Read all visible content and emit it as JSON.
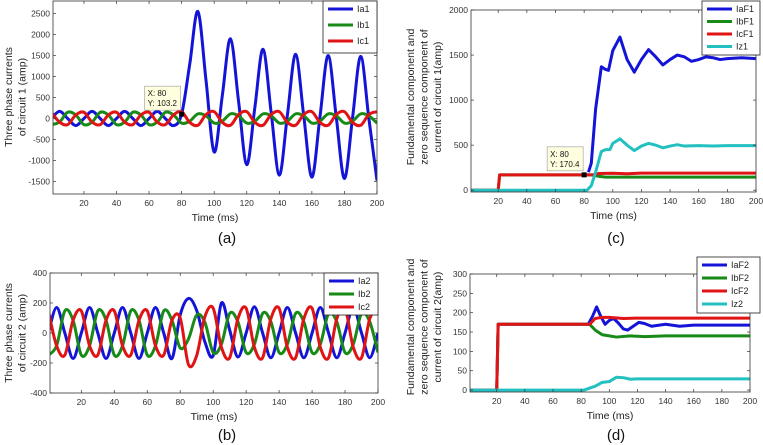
{
  "chart_data": [
    {
      "id": "a",
      "type": "line",
      "caption": "(a)",
      "xlabel": "Time (ms)",
      "ylabel": [
        "Three phase currents",
        "of circuit 1 (amp)"
      ],
      "xlim": [
        1,
        200
      ],
      "ylim": [
        -1800,
        2800
      ],
      "xticks": [
        20,
        40,
        60,
        80,
        100,
        120,
        140,
        160,
        180,
        200
      ],
      "yticks": [
        -1500,
        -1000,
        -500,
        0,
        500,
        1000,
        1500,
        2000,
        2500
      ],
      "grid": false,
      "legend": "top-right",
      "x": [
        0,
        5,
        10,
        15,
        20,
        25,
        30,
        35,
        40,
        45,
        50,
        55,
        60,
        65,
        70,
        75,
        80,
        85,
        90,
        95,
        100,
        105,
        110,
        115,
        120,
        125,
        130,
        135,
        140,
        145,
        150,
        155,
        160,
        165,
        170,
        175,
        180,
        185,
        190,
        195,
        200
      ],
      "series": [
        {
          "name": "Ia1",
          "color": "#1414d8",
          "y": [
            0,
            170,
            0,
            -170,
            0,
            170,
            0,
            -170,
            0,
            170,
            0,
            -170,
            0,
            170,
            0,
            -170,
            103,
            1300,
            2550,
            900,
            -800,
            550,
            1900,
            400,
            -1100,
            270,
            1650,
            140,
            -1350,
            90,
            1530,
            65,
            -1400,
            50,
            1500,
            25,
            -1430,
            25,
            1480,
            0,
            -1480
          ]
        },
        {
          "name": "Ib1",
          "color": "#178a17",
          "y": [
            -147,
            -85,
            147,
            85,
            -147,
            -85,
            147,
            85,
            -147,
            -85,
            147,
            85,
            -147,
            -85,
            147,
            85,
            -110,
            -64,
            110,
            64,
            -110,
            -64,
            110,
            64,
            -110,
            -64,
            110,
            64,
            -110,
            -64,
            110,
            64,
            -110,
            -64,
            110,
            64,
            -110,
            -64,
            110,
            64,
            -110
          ]
        },
        {
          "name": "Ic1",
          "color": "#e01414",
          "y": [
            147,
            -85,
            -147,
            85,
            147,
            -85,
            -147,
            85,
            147,
            -85,
            -147,
            85,
            147,
            -85,
            -147,
            85,
            162,
            -94,
            -162,
            94,
            162,
            -94,
            -162,
            94,
            162,
            -94,
            -162,
            94,
            162,
            -94,
            -162,
            94,
            162,
            -94,
            -162,
            94,
            162,
            -94,
            -162,
            94,
            162
          ]
        }
      ],
      "datatip": {
        "x_label": "X: 80",
        "y_label": "Y: 103.2",
        "x": 80,
        "y": 103.2
      }
    },
    {
      "id": "b",
      "type": "line",
      "caption": "(b)",
      "xlabel": "Time (ms)",
      "ylabel": [
        "Three phase currents",
        "of circuit 2 (amp)"
      ],
      "xlim": [
        1,
        200
      ],
      "ylim": [
        -400,
        400
      ],
      "xticks": [
        20,
        40,
        60,
        80,
        100,
        120,
        140,
        160,
        180,
        200
      ],
      "yticks": [
        -400,
        -200,
        0,
        200,
        400
      ],
      "grid": false,
      "legend": "top-right",
      "x": [
        0,
        5,
        10,
        15,
        20,
        25,
        30,
        35,
        40,
        45,
        50,
        55,
        60,
        65,
        70,
        75,
        80,
        85,
        90,
        95,
        100,
        105,
        110,
        115,
        120,
        125,
        130,
        135,
        140,
        145,
        150,
        155,
        160,
        165,
        170,
        175,
        180,
        185,
        190,
        195,
        200
      ],
      "series": [
        {
          "name": "Ia2",
          "color": "#1414d8",
          "y": [
            0,
            170,
            0,
            -170,
            0,
            170,
            0,
            -170,
            0,
            170,
            0,
            -170,
            0,
            170,
            0,
            -170,
            120,
            230,
            150,
            -60,
            -150,
            200,
            20,
            -160,
            0,
            175,
            0,
            -165,
            0,
            170,
            0,
            -165,
            0,
            170,
            0,
            -165,
            0,
            170,
            0,
            -165,
            0
          ]
        },
        {
          "name": "Ib2",
          "color": "#178a17",
          "y": [
            -147,
            -85,
            147,
            85,
            -147,
            -85,
            147,
            85,
            -147,
            -85,
            147,
            85,
            -147,
            -85,
            147,
            85,
            -100,
            -40,
            120,
            70,
            -130,
            -75,
            130,
            75,
            -130,
            -75,
            130,
            75,
            -130,
            -75,
            130,
            75,
            -130,
            -75,
            130,
            75,
            -130,
            -75,
            130,
            75,
            -130
          ]
        },
        {
          "name": "Ic2",
          "color": "#e01414",
          "y": [
            147,
            -85,
            -147,
            85,
            147,
            -85,
            -147,
            85,
            147,
            -85,
            -147,
            85,
            147,
            -85,
            -147,
            85,
            100,
            -210,
            -150,
            110,
            165,
            -95,
            -165,
            95,
            165,
            -95,
            -165,
            95,
            165,
            -95,
            -165,
            95,
            165,
            -95,
            -165,
            95,
            165,
            -95,
            -165,
            95,
            165
          ]
        }
      ]
    },
    {
      "id": "c",
      "type": "line",
      "caption": "(c)",
      "xlabel": "Time (ms)",
      "ylabel": [
        "Fundamental component and",
        "zero sequence component of",
        "current of circuit 1(amp)"
      ],
      "xlim": [
        1,
        200
      ],
      "ylim": [
        -20,
        2000
      ],
      "xticks": [
        20,
        40,
        60,
        80,
        100,
        120,
        140,
        160,
        180,
        200
      ],
      "yticks": [
        0,
        500,
        1000,
        1500,
        2000
      ],
      "grid": false,
      "legend": "top-right",
      "series": [
        {
          "name": "IaF1",
          "color": "#1414d8",
          "points": [
            [
              83,
              200
            ],
            [
              85,
              300
            ],
            [
              88,
              900
            ],
            [
              92,
              1370
            ],
            [
              95,
              1340
            ],
            [
              97,
              1330
            ],
            [
              100,
              1550
            ],
            [
              105,
              1700
            ],
            [
              110,
              1450
            ],
            [
              115,
              1310
            ],
            [
              120,
              1450
            ],
            [
              125,
              1560
            ],
            [
              130,
              1480
            ],
            [
              135,
              1390
            ],
            [
              140,
              1450
            ],
            [
              145,
              1500
            ],
            [
              150,
              1480
            ],
            [
              155,
              1430
            ],
            [
              160,
              1450
            ],
            [
              165,
              1480
            ],
            [
              170,
              1470
            ],
            [
              175,
              1450
            ],
            [
              180,
              1460
            ],
            [
              190,
              1470
            ],
            [
              200,
              1460
            ]
          ]
        },
        {
          "name": "IbF1",
          "color": "#178a17",
          "points": [
            [
              1,
              0
            ],
            [
              20,
              0
            ],
            [
              21,
              170
            ],
            [
              86,
              170
            ],
            [
              90,
              155
            ],
            [
              95,
              145
            ],
            [
              120,
              145
            ],
            [
              200,
              145
            ]
          ]
        },
        {
          "name": "IcF1",
          "color": "#e01414",
          "points": [
            [
              1,
              0
            ],
            [
              20,
              0
            ],
            [
              21,
              170
            ],
            [
              86,
              170
            ],
            [
              90,
              185
            ],
            [
              100,
              188
            ],
            [
              110,
              182
            ],
            [
              120,
              190
            ],
            [
              200,
              190
            ]
          ]
        },
        {
          "name": "Iz1",
          "color": "#22c0c0",
          "points": [
            [
              1,
              0
            ],
            [
              82,
              0
            ],
            [
              85,
              50
            ],
            [
              88,
              200
            ],
            [
              92,
              430
            ],
            [
              95,
              450
            ],
            [
              98,
              450
            ],
            [
              100,
              520
            ],
            [
              105,
              570
            ],
            [
              110,
              500
            ],
            [
              115,
              440
            ],
            [
              120,
              490
            ],
            [
              125,
              520
            ],
            [
              130,
              500
            ],
            [
              135,
              470
            ],
            [
              140,
              490
            ],
            [
              145,
              505
            ],
            [
              150,
              490
            ],
            [
              160,
              495
            ],
            [
              170,
              490
            ],
            [
              180,
              495
            ],
            [
              200,
              495
            ]
          ]
        }
      ],
      "datatip": {
        "x_label": "X: 80",
        "y_label": "Y: 170.4",
        "x": 80,
        "y": 170.4
      }
    },
    {
      "id": "d",
      "type": "line",
      "caption": "(d)",
      "xlabel": "Time (ms)",
      "ylabel": [
        "Fundamental component and",
        "zero sequence component of",
        "current of circuit 2(amp)"
      ],
      "xlim": [
        1,
        200
      ],
      "ylim": [
        -5,
        300
      ],
      "xticks": [
        20,
        40,
        60,
        80,
        100,
        120,
        140,
        160,
        180,
        200
      ],
      "yticks": [
        0,
        50,
        100,
        150,
        200,
        250,
        300
      ],
      "grid": false,
      "legend": "top-right",
      "series": [
        {
          "name": "IaF2",
          "color": "#1414d8",
          "points": [
            [
              1,
              0
            ],
            [
              20,
              0
            ],
            [
              21,
              170
            ],
            [
              85,
              170
            ],
            [
              88,
              190
            ],
            [
              91,
              215
            ],
            [
              94,
              190
            ],
            [
              97,
              170
            ],
            [
              100,
              180
            ],
            [
              103,
              185
            ],
            [
              106,
              175
            ],
            [
              110,
              158
            ],
            [
              113,
              155
            ],
            [
              117,
              165
            ],
            [
              121,
              175
            ],
            [
              125,
              172
            ],
            [
              130,
              165
            ],
            [
              140,
              170
            ],
            [
              150,
              165
            ],
            [
              160,
              168
            ],
            [
              200,
              168
            ]
          ]
        },
        {
          "name": "IbF2",
          "color": "#178a17",
          "points": [
            [
              1,
              0
            ],
            [
              20,
              0
            ],
            [
              21,
              170
            ],
            [
              86,
              170
            ],
            [
              90,
              155
            ],
            [
              95,
              143
            ],
            [
              100,
              140
            ],
            [
              105,
              137
            ],
            [
              115,
              140
            ],
            [
              125,
              138
            ],
            [
              140,
              140
            ],
            [
              200,
              140
            ]
          ]
        },
        {
          "name": "IcF2",
          "color": "#e01414",
          "points": [
            [
              1,
              0
            ],
            [
              20,
              0
            ],
            [
              21,
              170
            ],
            [
              86,
              170
            ],
            [
              90,
              185
            ],
            [
              95,
              188
            ],
            [
              100,
              188
            ],
            [
              110,
              185
            ],
            [
              120,
              186
            ],
            [
              140,
              186
            ],
            [
              200,
              186
            ]
          ]
        },
        {
          "name": "Iz2",
          "color": "#22c0c0",
          "points": [
            [
              1,
              0
            ],
            [
              82,
              0
            ],
            [
              90,
              10
            ],
            [
              95,
              20
            ],
            [
              100,
              22
            ],
            [
              105,
              33
            ],
            [
              110,
              32
            ],
            [
              115,
              28
            ],
            [
              120,
              29
            ],
            [
              200,
              29
            ]
          ]
        }
      ]
    }
  ]
}
